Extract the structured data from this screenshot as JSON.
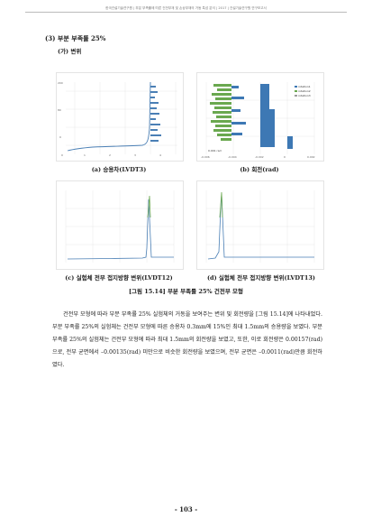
{
  "header": "한국건설기술연구원 | 부분 부족률에 따른 건전부재 및 손상부재의 거동 특성 분석 | 2017 | 건설기술연구원 연구보고서",
  "section_title": "(3) 부분 부족률 25%",
  "subsection_title": "(가) 변위",
  "panels": {
    "a": {
      "caption": "(a) 승용차(LVDT3)",
      "x_ticks": [
        "0",
        "0.5",
        "1",
        "1.5",
        "2",
        "2.5",
        "3",
        "3.5",
        "4",
        "4.5",
        "5"
      ],
      "y_ticks": [
        "200",
        "160",
        "120",
        "80",
        "40",
        "0",
        "-40",
        "-80"
      ]
    },
    "b": {
      "caption": "(b) 회전(rad)",
      "inset": "0.001 rad",
      "legend": [
        "rotation1",
        "rotation2",
        "rotation3"
      ],
      "x_ticks": [
        "-0.006",
        "-0.004",
        "-0.002",
        "0",
        "0.002"
      ]
    },
    "c": {
      "caption": "(c) 실험체 전부 접지방향 변위(LVDT12)"
    },
    "d": {
      "caption": "(d) 실험체 전부 접지방향 변위(LVDT13)"
    }
  },
  "figure_title": "[그림 15.14] 부분 부족률 25% 건전부 모형",
  "paragraph": "건전부 모형에 따라 부분 부족률 25% 실험체의 거동을 보여주는 변위 및 회전량을 [그림 15.14]에 나타내었다. 부분 부족률 25%의 실험체는 건전부 모형에 따른 승용차 0.3mm에 15%인 최대 1.5mm의 승용량을 보였다. 부분 부족률 25%의 실험체는 건전부 모형에 따라 최대 1.5mm의 회전량을 보였고, 또한, 이로 회전량은 0.00157(rad)으로, 전부 균면에서 –0.00135(rad) 미만으로 비슷한 회전량을 보였으며, 전부 균면은 –0.0011(rad)만큼 회전하였다.",
  "page_number": "- 103 -",
  "colors": {
    "line_blue": "#4a7fb5",
    "bar_green": "#6aa84f",
    "bar_blue": "#3d78b4",
    "grid": "#e2e2e2"
  }
}
